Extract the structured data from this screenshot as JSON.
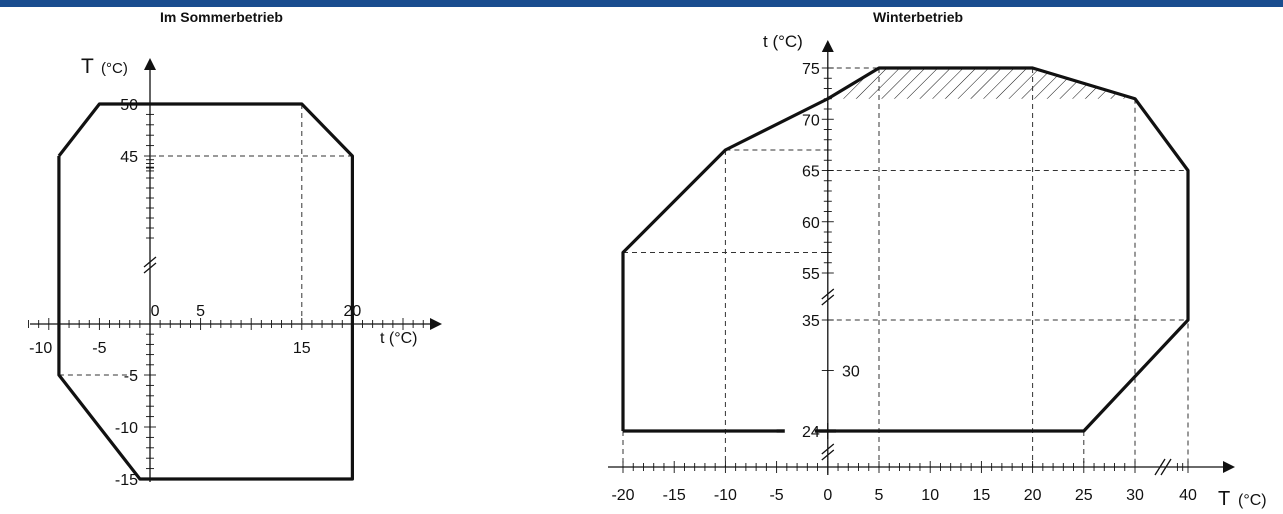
{
  "colors": {
    "top_bar": "#1a4d8f",
    "line": "#111111",
    "grid": "#333333"
  },
  "chart_data": [
    {
      "type": "line",
      "title": "Im Sommerbetrieb",
      "xlabel": "t (°C)",
      "ylabel": "T (°C)",
      "x_ticks": [
        "-10",
        "-5",
        "0",
        "5",
        "15",
        "20"
      ],
      "y_ticks": [
        "50",
        "45",
        "-5",
        "-10",
        "-15"
      ],
      "axis_break": "y",
      "grid": false,
      "series": [
        {
          "x": [
            -9,
            -9,
            -5,
            -4,
            15,
            20,
            20,
            -1,
            -9,
            -9
          ],
          "y": [
            45,
            45,
            50,
            50,
            50,
            45,
            -15,
            -15,
            -5,
            45
          ]
        }
      ]
    },
    {
      "type": "line",
      "title": "Winterbetrieb",
      "xlabel": "T (°C)",
      "ylabel": "t (°C)",
      "x_ticks": [
        "-20",
        "-15",
        "-10",
        "-5",
        "0",
        "5",
        "10",
        "15",
        "20",
        "25",
        "30",
        "40"
      ],
      "y_ticks": [
        "75",
        "70",
        "65",
        "60",
        "55",
        "35",
        "30",
        "24"
      ],
      "axis_break": "both",
      "grid": false,
      "series": [
        {
          "x": [
            -20,
            -20,
            -10,
            0,
            5,
            20,
            30,
            40,
            40,
            25,
            -5
          ],
          "y": [
            24,
            57,
            67,
            72,
            75,
            75,
            72,
            65,
            35,
            24,
            24
          ]
        }
      ],
      "hatched_region": {
        "x": [
          0,
          5,
          20,
          30
        ],
        "y_top": [
          72,
          75,
          75,
          72
        ],
        "y_bottom": 72
      }
    }
  ]
}
